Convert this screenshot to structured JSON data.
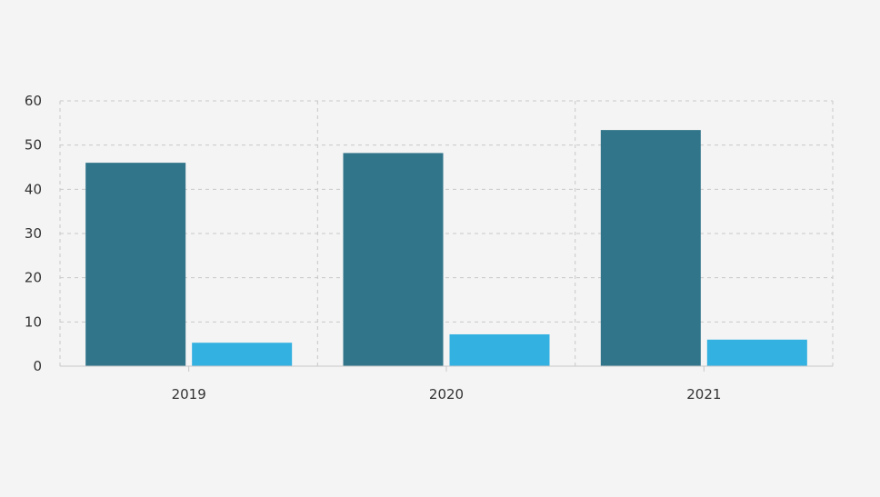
{
  "chart_data": {
    "type": "bar",
    "categories": [
      "2019",
      "2020",
      "2021"
    ],
    "series": [
      {
        "values": [
          46,
          48.2,
          53.4
        ],
        "color": "#31758a"
      },
      {
        "values": [
          5.3,
          7.2,
          6.0
        ],
        "color": "#33b1e0"
      }
    ],
    "ylim": [
      0,
      60
    ],
    "yticks": [
      0,
      10,
      20,
      30,
      40,
      50,
      60
    ],
    "grid": true,
    "legend": "none"
  }
}
